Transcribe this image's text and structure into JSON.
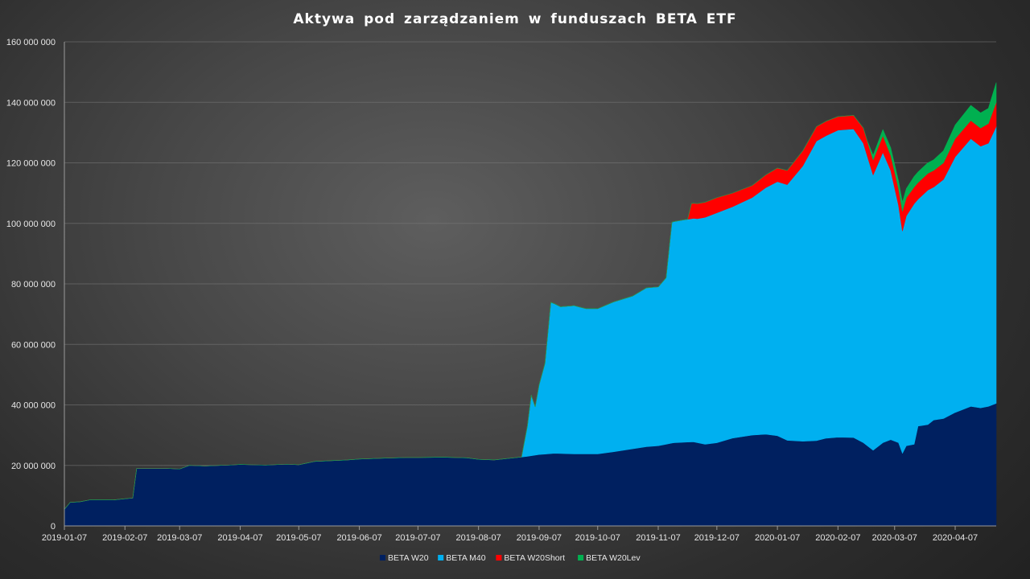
{
  "chart_data": {
    "type": "area",
    "stacked": true,
    "title": "Aktywa pod zarządzaniem  w funduszach  BETA  ETF",
    "xlabel": "",
    "ylabel": "",
    "x_tick_labels": [
      "2019-01-07",
      "2019-02-07",
      "2019-03-07",
      "2019-04-07",
      "2019-05-07",
      "2019-06-07",
      "2019-07-07",
      "2019-08-07",
      "2019-09-07",
      "2019-10-07",
      "2019-11-07",
      "2019-12-07",
      "2020-01-07",
      "2020-02-07",
      "2020-03-07",
      "2020-04-07"
    ],
    "y_tick_labels": [
      "0",
      "20 000 000",
      "40 000 000",
      "60 000 000",
      "80 000 000",
      "100 000 000",
      "120 000 000",
      "140 000 000",
      "160 000 000"
    ],
    "ylim": [
      0,
      160000000
    ],
    "xlim": [
      "2019-01-07",
      "2020-04-28"
    ],
    "grid": true,
    "legend_position": "bottom",
    "series": [
      {
        "name": "BETA W20",
        "color": "#002060",
        "points": [
          [
            "2019-01-07",
            5500000
          ],
          [
            "2019-01-10",
            7800000
          ],
          [
            "2019-01-15",
            8000000
          ],
          [
            "2019-01-20",
            8600000
          ],
          [
            "2019-02-01",
            8600000
          ],
          [
            "2019-02-07",
            9000000
          ],
          [
            "2019-02-11",
            9200000
          ],
          [
            "2019-02-13",
            19000000
          ],
          [
            "2019-02-20",
            19000000
          ],
          [
            "2019-02-28",
            19000000
          ],
          [
            "2019-03-07",
            18800000
          ],
          [
            "2019-03-12",
            20000000
          ],
          [
            "2019-03-20",
            19800000
          ],
          [
            "2019-04-01",
            20100000
          ],
          [
            "2019-04-07",
            20300000
          ],
          [
            "2019-04-20",
            20100000
          ],
          [
            "2019-05-01",
            20400000
          ],
          [
            "2019-05-07",
            20200000
          ],
          [
            "2019-05-15",
            21300000
          ],
          [
            "2019-06-01",
            21800000
          ],
          [
            "2019-06-07",
            22100000
          ],
          [
            "2019-06-20",
            22400000
          ],
          [
            "2019-07-01",
            22600000
          ],
          [
            "2019-07-07",
            22600000
          ],
          [
            "2019-07-20",
            22700000
          ],
          [
            "2019-08-01",
            22500000
          ],
          [
            "2019-08-07",
            22000000
          ],
          [
            "2019-08-15",
            21800000
          ],
          [
            "2019-08-25",
            22500000
          ],
          [
            "2019-09-01",
            23000000
          ],
          [
            "2019-09-07",
            23600000
          ],
          [
            "2019-09-15",
            24000000
          ],
          [
            "2019-09-25",
            23800000
          ],
          [
            "2019-10-07",
            23800000
          ],
          [
            "2019-10-15",
            24500000
          ],
          [
            "2019-10-25",
            25500000
          ],
          [
            "2019-11-01",
            26200000
          ],
          [
            "2019-11-07",
            26500000
          ],
          [
            "2019-11-15",
            27500000
          ],
          [
            "2019-11-25",
            27800000
          ],
          [
            "2019-12-01",
            27000000
          ],
          [
            "2019-12-07",
            27500000
          ],
          [
            "2019-12-15",
            29000000
          ],
          [
            "2019-12-25",
            30000000
          ],
          [
            "2020-01-01",
            30300000
          ],
          [
            "2020-01-07",
            29800000
          ],
          [
            "2020-01-12",
            28300000
          ],
          [
            "2020-01-20",
            28000000
          ],
          [
            "2020-01-27",
            28200000
          ],
          [
            "2020-02-01",
            29000000
          ],
          [
            "2020-02-07",
            29300000
          ],
          [
            "2020-02-15",
            29200000
          ],
          [
            "2020-02-20",
            27500000
          ],
          [
            "2020-02-25",
            25000000
          ],
          [
            "2020-03-01",
            27500000
          ],
          [
            "2020-03-05",
            28500000
          ],
          [
            "2020-03-09",
            27500000
          ],
          [
            "2020-03-11",
            24000000
          ],
          [
            "2020-03-13",
            26500000
          ],
          [
            "2020-03-17",
            27000000
          ],
          [
            "2020-03-19",
            33000000
          ],
          [
            "2020-03-24",
            33500000
          ],
          [
            "2020-03-27",
            35000000
          ],
          [
            "2020-04-01",
            35500000
          ],
          [
            "2020-04-07",
            37500000
          ],
          [
            "2020-04-15",
            39500000
          ],
          [
            "2020-04-20",
            39000000
          ],
          [
            "2020-04-24",
            39500000
          ],
          [
            "2020-04-28",
            40500000
          ]
        ]
      },
      {
        "name": "BETA M40",
        "color": "#00B0F0",
        "points": [
          [
            "2019-01-07",
            0
          ],
          [
            "2019-08-29",
            0
          ],
          [
            "2019-09-01",
            10000000
          ],
          [
            "2019-09-03",
            20000000
          ],
          [
            "2019-09-05",
            16000000
          ],
          [
            "2019-09-07",
            23000000
          ],
          [
            "2019-09-10",
            30000000
          ],
          [
            "2019-09-13",
            50000000
          ],
          [
            "2019-09-18",
            48500000
          ],
          [
            "2019-09-25",
            49000000
          ],
          [
            "2019-10-01",
            48000000
          ],
          [
            "2019-10-07",
            48000000
          ],
          [
            "2019-10-15",
            49500000
          ],
          [
            "2019-10-25",
            50500000
          ],
          [
            "2019-11-01",
            52500000
          ],
          [
            "2019-11-07",
            52500000
          ],
          [
            "2019-11-11",
            55000000
          ],
          [
            "2019-11-14",
            73000000
          ],
          [
            "2019-11-20",
            73500000
          ],
          [
            "2019-11-27",
            74000000
          ],
          [
            "2019-12-01",
            75000000
          ],
          [
            "2019-12-07",
            76000000
          ],
          [
            "2019-12-15",
            76500000
          ],
          [
            "2019-12-25",
            78500000
          ],
          [
            "2020-01-01",
            81500000
          ],
          [
            "2020-01-07",
            84000000
          ],
          [
            "2020-01-12",
            84500000
          ],
          [
            "2020-01-20",
            91000000
          ],
          [
            "2020-01-27",
            99000000
          ],
          [
            "2020-02-01",
            100000000
          ],
          [
            "2020-02-07",
            101500000
          ],
          [
            "2020-02-15",
            102000000
          ],
          [
            "2020-02-20",
            99000000
          ],
          [
            "2020-02-25",
            91000000
          ],
          [
            "2020-03-01",
            96000000
          ],
          [
            "2020-03-05",
            89000000
          ],
          [
            "2020-03-09",
            78500000
          ],
          [
            "2020-03-11",
            73500000
          ],
          [
            "2020-03-13",
            76000000
          ],
          [
            "2020-03-17",
            79500000
          ],
          [
            "2020-03-19",
            75000000
          ],
          [
            "2020-03-24",
            77500000
          ],
          [
            "2020-03-27",
            77000000
          ],
          [
            "2020-04-01",
            79000000
          ],
          [
            "2020-04-07",
            84500000
          ],
          [
            "2020-04-15",
            88500000
          ],
          [
            "2020-04-20",
            86500000
          ],
          [
            "2020-04-24",
            87000000
          ],
          [
            "2020-04-28",
            91500000
          ]
        ]
      },
      {
        "name": "BETA W20Short",
        "color": "#FF0000",
        "points": [
          [
            "2019-01-07",
            0
          ],
          [
            "2019-11-22",
            0
          ],
          [
            "2019-11-24",
            5000000
          ],
          [
            "2019-12-01",
            5000000
          ],
          [
            "2019-12-07",
            5000000
          ],
          [
            "2019-12-15",
            4500000
          ],
          [
            "2019-12-25",
            4000000
          ],
          [
            "2020-01-01",
            4200000
          ],
          [
            "2020-01-07",
            4500000
          ],
          [
            "2020-01-12",
            4700000
          ],
          [
            "2020-01-20",
            5000000
          ],
          [
            "2020-01-27",
            4800000
          ],
          [
            "2020-02-01",
            4800000
          ],
          [
            "2020-02-07",
            4500000
          ],
          [
            "2020-02-15",
            4500000
          ],
          [
            "2020-02-20",
            5000000
          ],
          [
            "2020-02-25",
            5000000
          ],
          [
            "2020-03-01",
            5500000
          ],
          [
            "2020-03-05",
            5000000
          ],
          [
            "2020-03-09",
            5500000
          ],
          [
            "2020-03-11",
            6500000
          ],
          [
            "2020-03-13",
            6000000
          ],
          [
            "2020-03-17",
            5500000
          ],
          [
            "2020-03-19",
            5500000
          ],
          [
            "2020-03-24",
            5500000
          ],
          [
            "2020-03-27",
            5500000
          ],
          [
            "2020-04-01",
            5500000
          ],
          [
            "2020-04-07",
            6000000
          ],
          [
            "2020-04-15",
            6000000
          ],
          [
            "2020-04-20",
            6000000
          ],
          [
            "2020-04-24",
            6500000
          ],
          [
            "2020-04-28",
            8000000
          ]
        ]
      },
      {
        "name": "BETA W20Lev",
        "color": "#00B050",
        "points": [
          [
            "2019-01-07",
            0
          ],
          [
            "2020-02-22",
            0
          ],
          [
            "2020-02-25",
            1500000
          ],
          [
            "2020-03-01",
            2000000
          ],
          [
            "2020-03-05",
            2500000
          ],
          [
            "2020-03-09",
            2500000
          ],
          [
            "2020-03-11",
            3000000
          ],
          [
            "2020-03-13",
            3000000
          ],
          [
            "2020-03-17",
            3500000
          ],
          [
            "2020-03-19",
            3500000
          ],
          [
            "2020-03-24",
            3500000
          ],
          [
            "2020-03-27",
            3500000
          ],
          [
            "2020-04-01",
            4000000
          ],
          [
            "2020-04-07",
            4500000
          ],
          [
            "2020-04-15",
            5000000
          ],
          [
            "2020-04-20",
            5000000
          ],
          [
            "2020-04-24",
            5000000
          ],
          [
            "2020-04-28",
            6500000
          ]
        ]
      }
    ]
  }
}
